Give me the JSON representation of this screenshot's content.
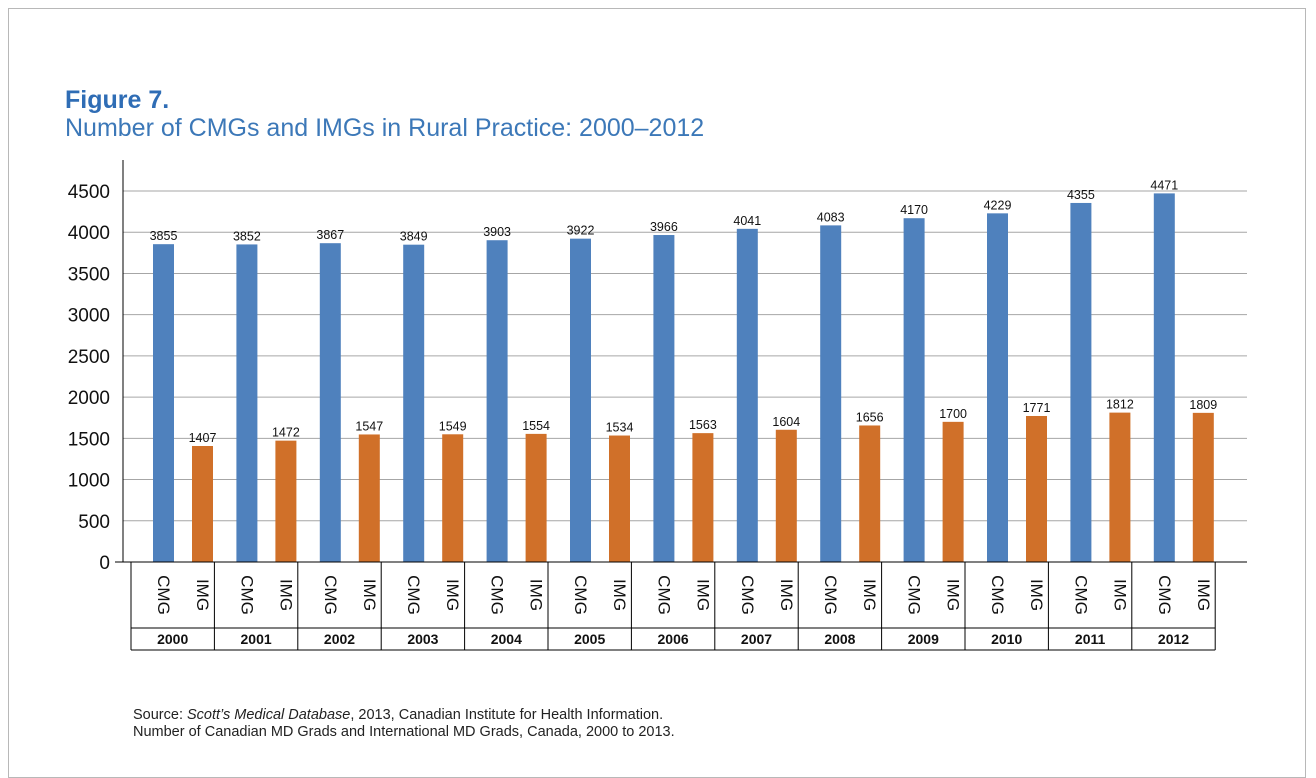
{
  "figure": {
    "label": "Figure 7.",
    "title": "Number of CMGs and IMGs in Rural Practice: 2000–2012"
  },
  "source": {
    "prefix": "Source: ",
    "database": "Scott’s Medical Database",
    "rest": ", 2013, Canadian Institute for Health Information.",
    "line2": "Number of Canadian MD Grads and International MD Grads, Canada, 2000 to 2013."
  },
  "chart_data": {
    "type": "bar",
    "title": "Number of CMGs and IMGs in Rural Practice: 2000–2012",
    "categories": [
      "2000",
      "2001",
      "2002",
      "2003",
      "2004",
      "2005",
      "2006",
      "2007",
      "2008",
      "2009",
      "2010",
      "2011",
      "2012"
    ],
    "subcategories": [
      "CMG",
      "IMG"
    ],
    "series": [
      {
        "name": "CMG",
        "color": "#4f81bd",
        "values": [
          3855,
          3852,
          3867,
          3849,
          3903,
          3922,
          3966,
          4041,
          4083,
          4170,
          4229,
          4355,
          4471
        ]
      },
      {
        "name": "IMG",
        "color": "#d07029",
        "values": [
          1407,
          1472,
          1547,
          1549,
          1554,
          1534,
          1563,
          1604,
          1656,
          1700,
          1771,
          1812,
          1809
        ]
      }
    ],
    "ylim": [
      0,
      4500
    ],
    "yticks": [
      0,
      500,
      1000,
      1500,
      2000,
      2500,
      3000,
      3500,
      4000,
      4500
    ],
    "grid": true,
    "legend": "none",
    "data_labels": true
  }
}
